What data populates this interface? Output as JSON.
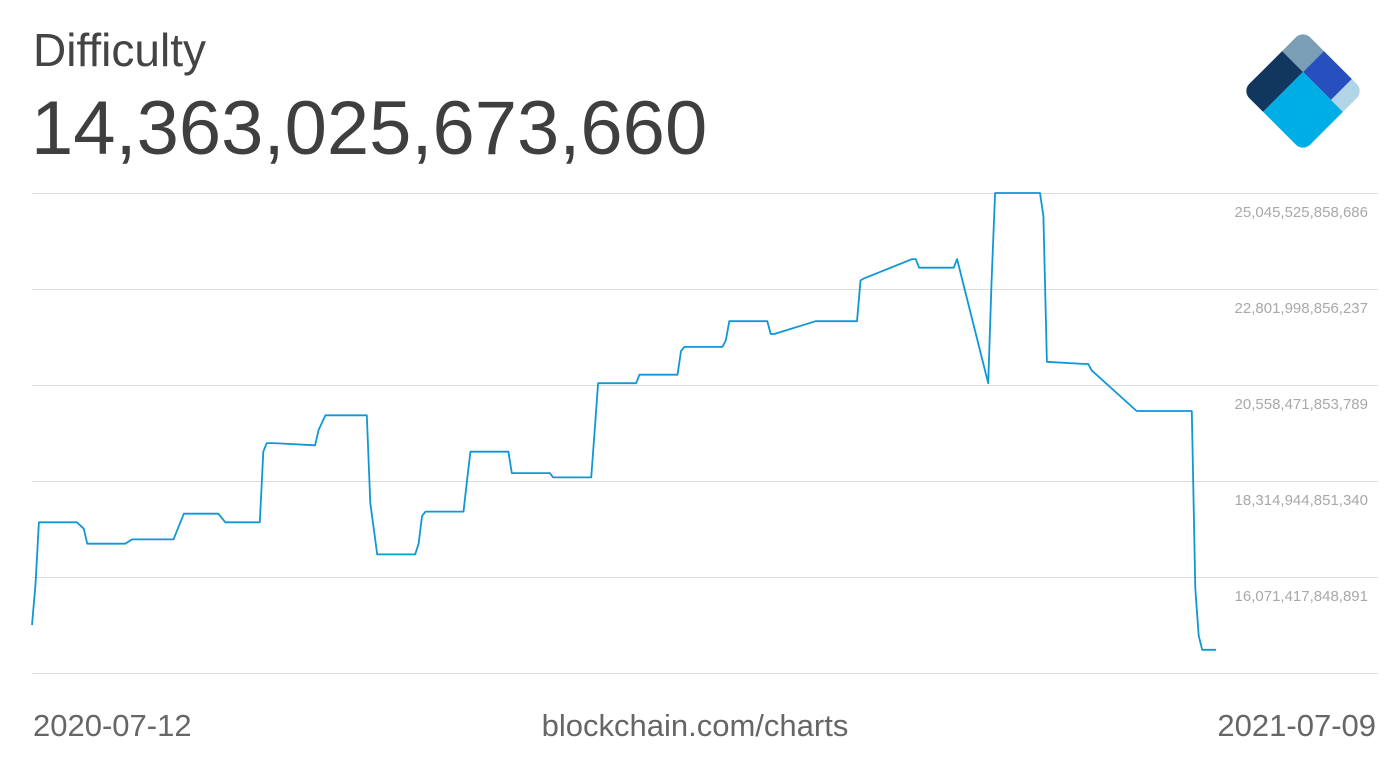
{
  "header": {
    "title": "Difficulty",
    "value": "14,363,025,673,660"
  },
  "footer": {
    "start_date": "2020-07-12",
    "source": "blockchain.com/charts",
    "end_date": "2021-07-09"
  },
  "logo": {
    "icon": "blockchain-diamond-logo-icon",
    "colors": [
      "#7a9fb5",
      "#12375f",
      "#274fbd",
      "#00aee6",
      "#b1d5e6"
    ]
  },
  "chart_data": {
    "type": "line",
    "x_range": [
      "2020-07-12",
      "2021-07-09"
    ],
    "ylim": [
      13827890846442,
      25045525858686
    ],
    "grid": "horizontal",
    "y_ticks": [
      {
        "value": 25045525858686,
        "label": "25,045,525,858,686"
      },
      {
        "value": 22801998856237,
        "label": "22,801,998,856,237"
      },
      {
        "value": 20558471853789,
        "label": "20,558,471,853,789"
      },
      {
        "value": 18314944851340,
        "label": "18,314,944,851,340"
      },
      {
        "value": 16071417848891,
        "label": "16,071,417,848,891"
      }
    ],
    "line_color": "#0e98d5",
    "x": [
      "2020-07-12",
      "2020-07-13",
      "2020-07-14",
      "2020-07-25",
      "2020-07-27",
      "2020-07-28",
      "2020-08-08",
      "2020-08-10",
      "2020-08-22",
      "2020-08-24",
      "2020-08-25",
      "2020-09-04",
      "2020-09-06",
      "2020-09-16",
      "2020-09-17",
      "2020-09-18",
      "2020-09-20",
      "2020-10-02",
      "2020-10-03",
      "2020-10-05",
      "2020-10-17",
      "2020-10-18",
      "2020-10-20",
      "2020-10-21",
      "2020-10-31",
      "2020-11-01",
      "2020-11-02",
      "2020-11-03",
      "2020-11-14",
      "2020-11-15",
      "2020-11-16",
      "2020-11-27",
      "2020-11-28",
      "2020-12-09",
      "2020-12-10",
      "2020-12-21",
      "2020-12-22",
      "2020-12-23",
      "2021-01-03",
      "2021-01-04",
      "2021-01-15",
      "2021-01-16",
      "2021-01-17",
      "2021-01-28",
      "2021-01-29",
      "2021-01-30",
      "2021-02-10",
      "2021-02-11",
      "2021-02-12",
      "2021-02-24",
      "2021-02-25",
      "2021-03-08",
      "2021-03-09",
      "2021-03-10",
      "2021-03-24",
      "2021-03-25",
      "2021-03-26",
      "2021-04-05",
      "2021-04-06",
      "2021-04-15",
      "2021-04-16",
      "2021-04-17",
      "2021-04-30",
      "2021-05-01",
      "2021-05-02",
      "2021-05-13",
      "2021-05-14",
      "2021-05-15",
      "2021-05-28",
      "2021-05-29",
      "2021-05-30",
      "2021-06-13",
      "2021-06-14",
      "2021-06-15",
      "2021-06-16",
      "2021-06-20"
    ],
    "values": [
      14.95,
      15.9,
      17.35,
      17.35,
      17.2,
      16.85,
      16.85,
      16.95,
      16.95,
      17.35,
      17.55,
      17.55,
      17.35,
      17.35,
      19.0,
      19.2,
      19.2,
      19.15,
      19.5,
      19.85,
      19.85,
      17.8,
      16.6,
      16.6,
      16.6,
      16.85,
      17.5,
      17.6,
      17.6,
      18.3,
      19.0,
      19.0,
      18.5,
      18.5,
      18.4,
      18.4,
      19.5,
      20.6,
      20.6,
      20.8,
      20.8,
      21.35,
      21.45,
      21.45,
      21.6,
      22.05,
      22.05,
      21.75,
      21.75,
      22.05,
      22.05,
      22.05,
      23.0,
      23.05,
      23.5,
      23.5,
      23.3,
      23.3,
      23.5,
      20.6,
      23.0,
      25.1,
      25.1,
      24.5,
      21.1,
      21.05,
      21.05,
      20.9,
      19.95,
      19.95,
      19.95,
      19.95,
      15.8,
      14.7,
      14.37,
      14.37
    ]
  }
}
